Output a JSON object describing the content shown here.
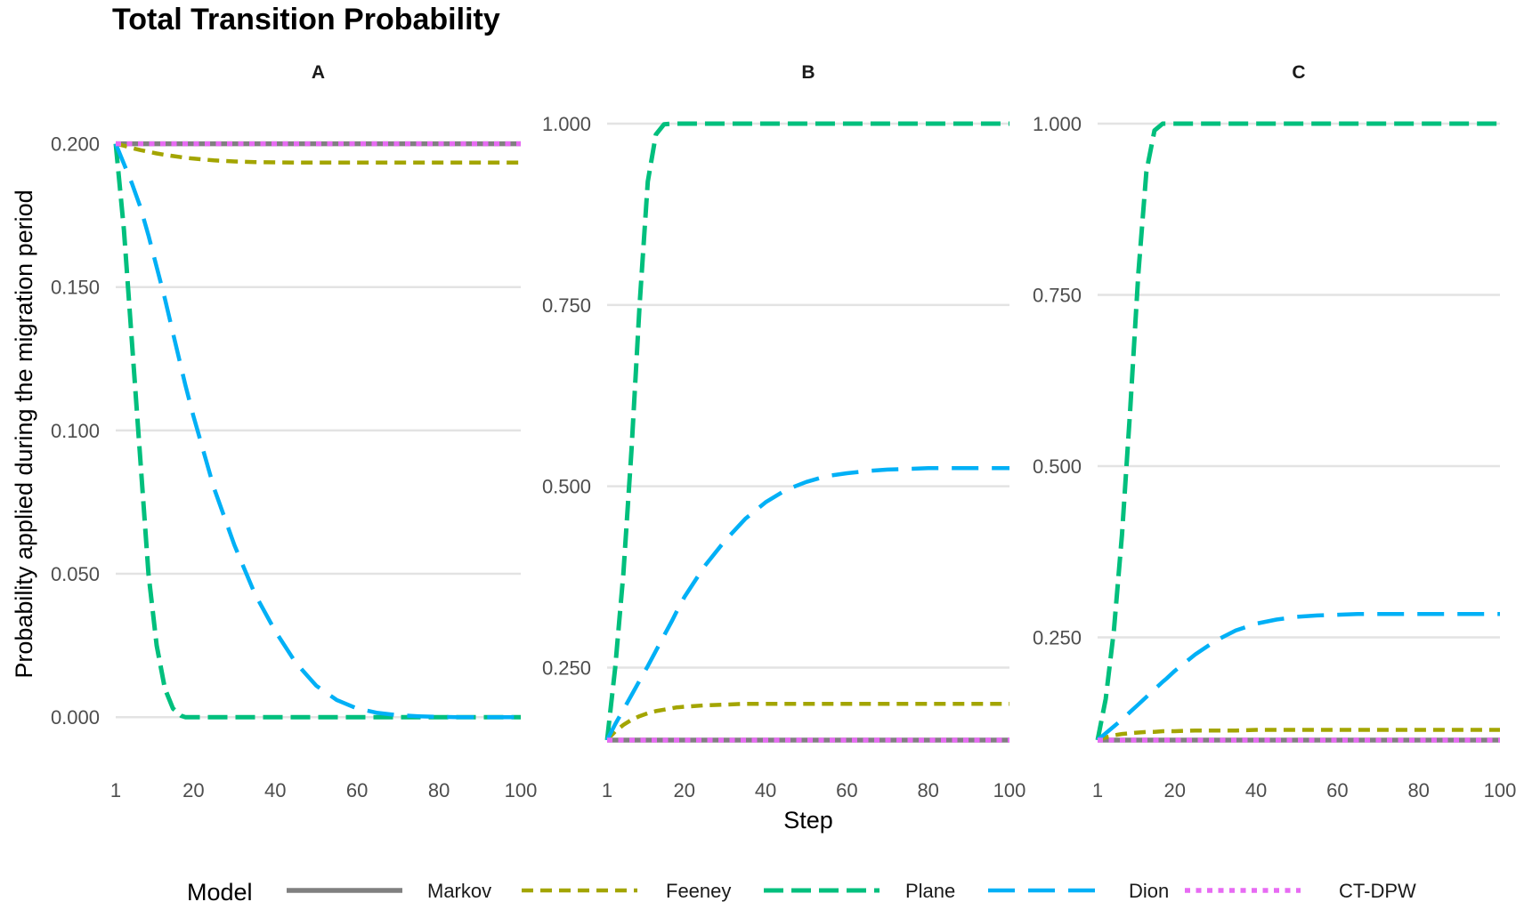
{
  "chart_data": {
    "type": "line",
    "title": "Total Transition Probability",
    "xlabel": "Step",
    "ylabel": "Probability applied during the migration period",
    "legend": {
      "title": "Model",
      "position": "bottom"
    },
    "x_ticks": [
      1,
      20,
      40,
      60,
      80,
      100
    ],
    "grid": true,
    "series_styles": [
      {
        "name": "Markov",
        "color": "#808080",
        "dash": "solid"
      },
      {
        "name": "Feeney",
        "color": "#a3a500",
        "dash": "short-dash"
      },
      {
        "name": "Plane",
        "color": "#00bf7d",
        "dash": "dash"
      },
      {
        "name": "Dion",
        "color": "#00b0f6",
        "dash": "long-dash"
      },
      {
        "name": "CT-DPW",
        "color": "#e76bf3",
        "dash": "dotted"
      }
    ],
    "panels": [
      {
        "facet": "A",
        "xlim": [
          1,
          100
        ],
        "ylim": [
          -0.008,
          0.207
        ],
        "y_ticks": [
          0.0,
          0.05,
          0.1,
          0.15,
          0.2
        ],
        "y_tick_labels": [
          "0.000",
          "0.050",
          "0.100",
          "0.150",
          "0.200"
        ],
        "x": [
          1,
          3,
          5,
          7,
          9,
          11,
          13,
          15,
          17,
          18,
          20,
          25,
          30,
          35,
          40,
          45,
          50,
          55,
          60,
          65,
          70,
          75,
          80,
          85,
          90,
          95,
          100
        ],
        "series": [
          {
            "name": "Markov",
            "values": [
              0.2,
              0.2,
              0.2,
              0.2,
              0.2,
              0.2,
              0.2,
              0.2,
              0.2,
              0.2,
              0.2,
              0.2,
              0.2,
              0.2,
              0.2,
              0.2,
              0.2,
              0.2,
              0.2,
              0.2,
              0.2,
              0.2,
              0.2,
              0.2,
              0.2,
              0.2,
              0.2
            ]
          },
          {
            "name": "Feeney",
            "values": [
              0.2,
              0.1993,
              0.1985,
              0.1978,
              0.1972,
              0.1966,
              0.1961,
              0.1957,
              0.1953,
              0.1951,
              0.1948,
              0.1942,
              0.1938,
              0.1936,
              0.1935,
              0.1934,
              0.1934,
              0.1934,
              0.1934,
              0.1934,
              0.1934,
              0.1934,
              0.1934,
              0.1934,
              0.1934,
              0.1934,
              0.1934
            ]
          },
          {
            "name": "Plane",
            "values": [
              0.2,
              0.17,
              0.13,
              0.09,
              0.05,
              0.025,
              0.01,
              0.003,
              0.0005,
              0.0,
              0.0,
              0.0,
              0.0,
              0.0,
              0.0,
              0.0,
              0.0,
              0.0,
              0.0,
              0.0,
              0.0,
              0.0,
              0.0,
              0.0,
              0.0,
              0.0,
              0.0
            ]
          },
          {
            "name": "Dion",
            "values": [
              0.2,
              0.193,
              0.186,
              0.178,
              0.168,
              0.157,
              0.146,
              0.134,
              0.122,
              0.116,
              0.105,
              0.08,
              0.06,
              0.043,
              0.03,
              0.019,
              0.011,
              0.006,
              0.003,
              0.0015,
              0.0007,
              0.0003,
              0.0001,
              0.0,
              0.0,
              0.0,
              0.0
            ]
          },
          {
            "name": "CT-DPW",
            "values": [
              0.2,
              0.2,
              0.2,
              0.2,
              0.2,
              0.2,
              0.2,
              0.2,
              0.2,
              0.2,
              0.2,
              0.2,
              0.2,
              0.2,
              0.2,
              0.2,
              0.2,
              0.2,
              0.2,
              0.2,
              0.2,
              0.2,
              0.2,
              0.2,
              0.2,
              0.2,
              0.2
            ]
          }
        ]
      },
      {
        "facet": "B",
        "xlim": [
          1,
          100
        ],
        "ylim": [
          0.15,
          1.0
        ],
        "y_ticks": [
          0.25,
          0.5,
          0.75,
          1.0
        ],
        "y_tick_labels": [
          "0.250",
          "0.500",
          "0.750",
          "1.000"
        ],
        "x": [
          1,
          3,
          5,
          7,
          9,
          11,
          13,
          15,
          17,
          18,
          20,
          25,
          30,
          35,
          40,
          45,
          50,
          55,
          60,
          65,
          70,
          75,
          80,
          85,
          90,
          95,
          100
        ],
        "series": [
          {
            "name": "Markov",
            "values": [
              0.15,
              0.15,
              0.15,
              0.15,
              0.15,
              0.15,
              0.15,
              0.15,
              0.15,
              0.15,
              0.15,
              0.15,
              0.15,
              0.15,
              0.15,
              0.15,
              0.15,
              0.15,
              0.15,
              0.15,
              0.15,
              0.15,
              0.15,
              0.15,
              0.15,
              0.15,
              0.15
            ]
          },
          {
            "name": "Feeney",
            "values": [
              0.15,
              0.162,
              0.171,
              0.178,
              0.183,
              0.187,
              0.19,
              0.192,
              0.194,
              0.195,
              0.196,
              0.198,
              0.199,
              0.2,
              0.2,
              0.2,
              0.2,
              0.2,
              0.2,
              0.2,
              0.2,
              0.2,
              0.2,
              0.2,
              0.2,
              0.2,
              0.2
            ]
          },
          {
            "name": "Plane",
            "values": [
              0.15,
              0.25,
              0.38,
              0.55,
              0.75,
              0.92,
              0.985,
              0.999,
              1.0,
              1.0,
              1.0,
              1.0,
              1.0,
              1.0,
              1.0,
              1.0,
              1.0,
              1.0,
              1.0,
              1.0,
              1.0,
              1.0,
              1.0,
              1.0,
              1.0,
              1.0,
              1.0
            ]
          },
          {
            "name": "Dion",
            "values": [
              0.15,
              0.172,
              0.192,
              0.212,
              0.232,
              0.252,
              0.273,
              0.294,
              0.315,
              0.326,
              0.347,
              0.39,
              0.425,
              0.455,
              0.478,
              0.495,
              0.506,
              0.514,
              0.518,
              0.521,
              0.523,
              0.524,
              0.525,
              0.525,
              0.525,
              0.525,
              0.525
            ]
          },
          {
            "name": "CT-DPW",
            "values": [
              0.15,
              0.15,
              0.15,
              0.15,
              0.15,
              0.15,
              0.15,
              0.15,
              0.15,
              0.15,
              0.15,
              0.15,
              0.15,
              0.15,
              0.15,
              0.15,
              0.15,
              0.15,
              0.15,
              0.15,
              0.15,
              0.15,
              0.15,
              0.15,
              0.15,
              0.15,
              0.15
            ]
          }
        ]
      },
      {
        "facet": "C",
        "xlim": [
          1,
          100
        ],
        "ylim": [
          0.1,
          1.0
        ],
        "y_ticks": [
          0.25,
          0.5,
          0.75,
          1.0
        ],
        "y_tick_labels": [
          "0.250",
          "0.500",
          "0.750",
          "1.000"
        ],
        "x": [
          1,
          3,
          5,
          7,
          9,
          11,
          13,
          15,
          17,
          18,
          20,
          25,
          30,
          35,
          40,
          45,
          50,
          55,
          60,
          65,
          70,
          75,
          80,
          85,
          90,
          95,
          100
        ],
        "series": [
          {
            "name": "Markov",
            "values": [
              0.1,
              0.1,
              0.1,
              0.1,
              0.1,
              0.1,
              0.1,
              0.1,
              0.1,
              0.1,
              0.1,
              0.1,
              0.1,
              0.1,
              0.1,
              0.1,
              0.1,
              0.1,
              0.1,
              0.1,
              0.1,
              0.1,
              0.1,
              0.1,
              0.1,
              0.1,
              0.1
            ]
          },
          {
            "name": "Feeney",
            "values": [
              0.1,
              0.104,
              0.107,
              0.109,
              0.11,
              0.111,
              0.112,
              0.112,
              0.113,
              0.113,
              0.113,
              0.114,
              0.114,
              0.114,
              0.115,
              0.115,
              0.115,
              0.115,
              0.115,
              0.115,
              0.115,
              0.115,
              0.115,
              0.115,
              0.115,
              0.115,
              0.115
            ]
          },
          {
            "name": "Plane",
            "values": [
              0.1,
              0.16,
              0.26,
              0.4,
              0.58,
              0.78,
              0.93,
              0.99,
              1.0,
              1.0,
              1.0,
              1.0,
              1.0,
              1.0,
              1.0,
              1.0,
              1.0,
              1.0,
              1.0,
              1.0,
              1.0,
              1.0,
              1.0,
              1.0,
              1.0,
              1.0,
              1.0
            ]
          },
          {
            "name": "Dion",
            "values": [
              0.1,
              0.11,
              0.12,
              0.13,
              0.141,
              0.152,
              0.163,
              0.174,
              0.185,
              0.19,
              0.201,
              0.225,
              0.245,
              0.26,
              0.27,
              0.276,
              0.28,
              0.282,
              0.283,
              0.284,
              0.284,
              0.284,
              0.284,
              0.284,
              0.284,
              0.284,
              0.284
            ]
          },
          {
            "name": "CT-DPW",
            "values": [
              0.1,
              0.1,
              0.1,
              0.1,
              0.1,
              0.1,
              0.1,
              0.1,
              0.1,
              0.1,
              0.1,
              0.1,
              0.1,
              0.1,
              0.1,
              0.1,
              0.1,
              0.1,
              0.1,
              0.1,
              0.1,
              0.1,
              0.1,
              0.1,
              0.1,
              0.1,
              0.1
            ]
          }
        ]
      }
    ]
  }
}
